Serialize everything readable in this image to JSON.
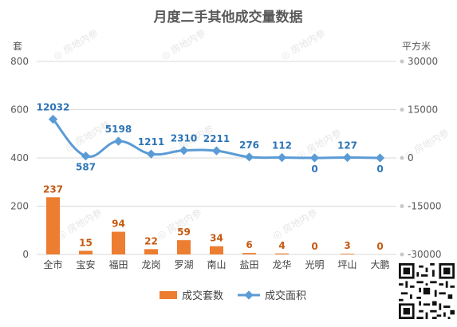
{
  "chart_data": {
    "type": "bar+line",
    "title": "月度二手其他成交量数据",
    "y_left_label": "套",
    "y_right_label": "平方米",
    "y_left_ticks": [
      0,
      200,
      400,
      600,
      800
    ],
    "y_right_ticks": [
      -30000,
      -15000,
      0,
      15000,
      30000
    ],
    "ylim_left": [
      0,
      800
    ],
    "ylim_right": [
      -30000,
      30000
    ],
    "categories": [
      "全市",
      "宝安",
      "福田",
      "龙岗",
      "罗湖",
      "南山",
      "盐田",
      "龙华",
      "光明",
      "坪山",
      "大鹏"
    ],
    "series": [
      {
        "name": "成交套数",
        "type": "bar",
        "axis": "left",
        "color": "#ED7D31",
        "values": [
          237,
          15,
          94,
          22,
          59,
          34,
          6,
          4,
          0,
          3,
          0
        ]
      },
      {
        "name": "成交面积",
        "type": "line",
        "axis": "right",
        "color": "#5B9BD5",
        "values": [
          12032,
          587,
          5198,
          1211,
          2310,
          2211,
          276,
          112,
          0,
          127,
          0
        ]
      }
    ],
    "grid": true,
    "legend_position": "bottom",
    "watermark": "房地内参"
  }
}
